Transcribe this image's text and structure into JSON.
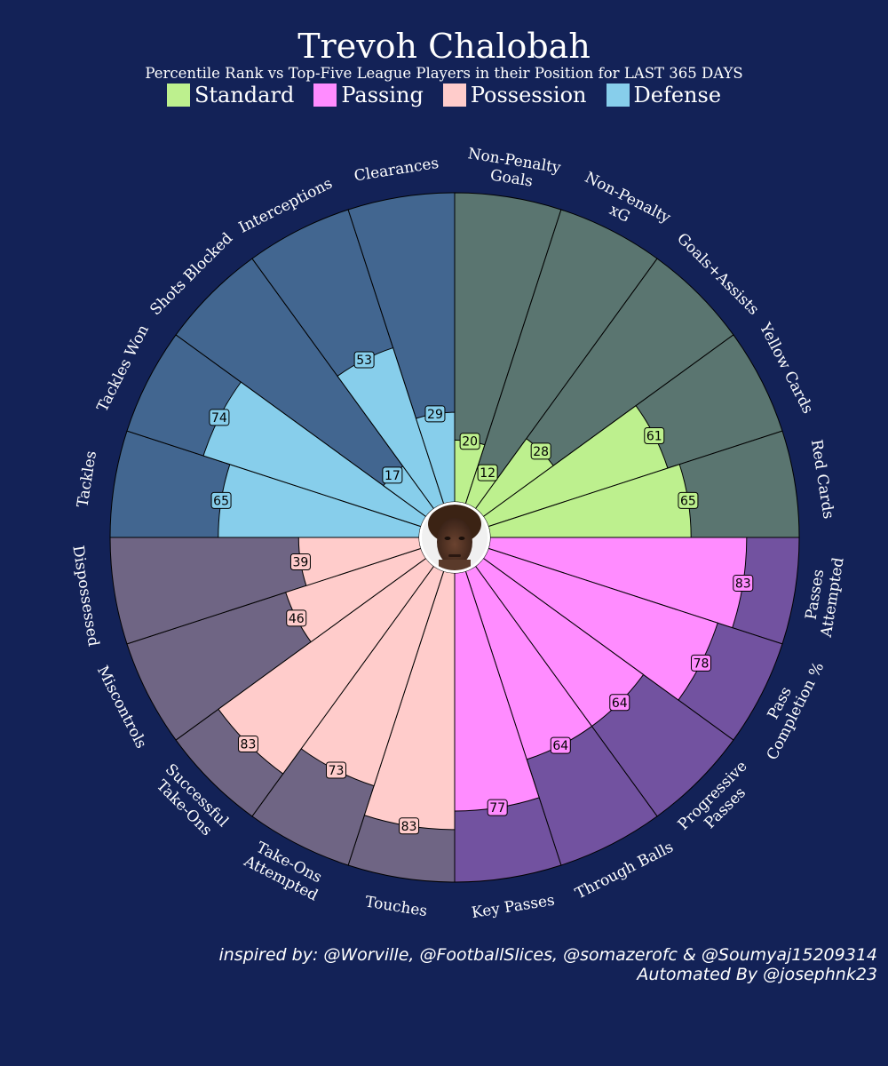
{
  "header": {
    "title": "Trevoh Chalobah",
    "subtitle": "Percentile Rank vs Top-Five League Players in their Position for LAST 365 DAYS"
  },
  "legend": [
    {
      "label": "Standard",
      "color": "#bdf08e"
    },
    {
      "label": "Passing",
      "color": "#ff8cff"
    },
    {
      "label": "Possession",
      "color": "#ffcccb"
    },
    {
      "label": "Defense",
      "color": "#87ceeb"
    }
  ],
  "colors": {
    "background": "#132257",
    "avatar_icon": "player-photo-icon"
  },
  "chart_data": {
    "type": "bar",
    "subtype": "polar",
    "title": "Trevoh Chalobah",
    "subtitle": "Percentile Rank vs Top-Five League Players in their Position for LAST 365 DAYS",
    "ylim": [
      0,
      100
    ],
    "legend_placement": "top-center",
    "groups": [
      {
        "name": "Standard",
        "color": "#bdf08e",
        "background_color": "#5a7570"
      },
      {
        "name": "Passing",
        "color": "#ff8cff",
        "background_color": "#7252a0"
      },
      {
        "name": "Possession",
        "color": "#ffcccb",
        "background_color": "#6f6584"
      },
      {
        "name": "Defense",
        "color": "#87ceeb",
        "background_color": "#426690"
      }
    ],
    "categories": [
      "Non-Penalty Goals",
      "Non-Penalty xG",
      "Goals+Assists",
      "Yellow Cards",
      "Red Cards",
      "Passes Attempted",
      "Pass Completion %",
      "Progressive Passes",
      "Through Balls",
      "Key Passes",
      "Touches",
      "Take-Ons Attempted",
      "Successful Take-Ons",
      "Miscontrols",
      "Dispossessed",
      "Tackles",
      "Tackles Won",
      "Shots Blocked",
      "Interceptions",
      "Clearances"
    ],
    "label_lines": [
      [
        "Non-Penalty",
        "Goals"
      ],
      [
        "Non-Penalty",
        "xG"
      ],
      [
        "Goals+Assists"
      ],
      [
        "Yellow Cards"
      ],
      [
        "Red Cards"
      ],
      [
        "Passes",
        "Attempted"
      ],
      [
        "Pass",
        "Completion %"
      ],
      [
        "Progressive",
        "Passes"
      ],
      [
        "Through Balls"
      ],
      [
        "Key Passes"
      ],
      [
        "Touches"
      ],
      [
        "Take-Ons",
        "Attempted"
      ],
      [
        "Successful",
        "Take-Ons"
      ],
      [
        "Miscontrols"
      ],
      [
        "Dispossessed"
      ],
      [
        "Tackles"
      ],
      [
        "Tackles Won"
      ],
      [
        "Shots Blocked"
      ],
      [
        "Interceptions"
      ],
      [
        "Clearances"
      ]
    ],
    "category_group": [
      "Standard",
      "Standard",
      "Standard",
      "Standard",
      "Standard",
      "Passing",
      "Passing",
      "Passing",
      "Passing",
      "Passing",
      "Possession",
      "Possession",
      "Possession",
      "Possession",
      "Possession",
      "Defense",
      "Defense",
      "Defense",
      "Defense",
      "Defense"
    ],
    "values": [
      20,
      12,
      28,
      61,
      65,
      83,
      78,
      64,
      64,
      77,
      83,
      73,
      83,
      46,
      39,
      65,
      74,
      17,
      53,
      29
    ],
    "value_labels": [
      "20",
      "12",
      "28",
      "61",
      "65",
      "83",
      "78",
      "64",
      "64",
      "77",
      "83",
      "73",
      "83",
      "46",
      "39",
      "65",
      "74",
      "17",
      "53",
      "29"
    ]
  },
  "credits": {
    "line1": "inspired by: @Worville, @FootballSlices, @somazerofc & @Soumyaj15209314",
    "line2": "Automated By @josephnk23"
  }
}
